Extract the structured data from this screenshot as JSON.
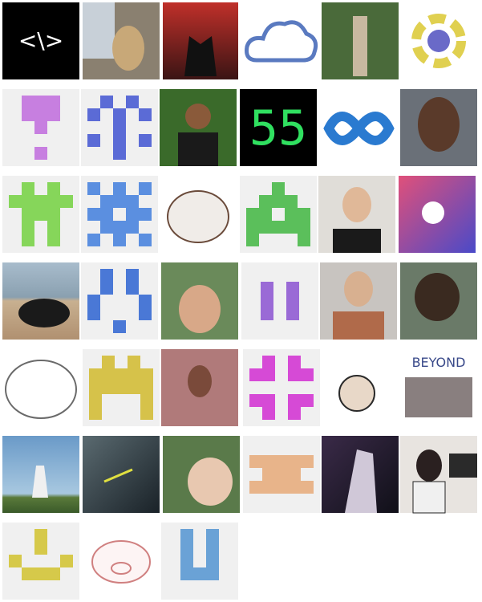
{
  "avatars": {
    "code_icon": "<\\>",
    "number_icon": "55",
    "group_icon": "BEYOND"
  }
}
